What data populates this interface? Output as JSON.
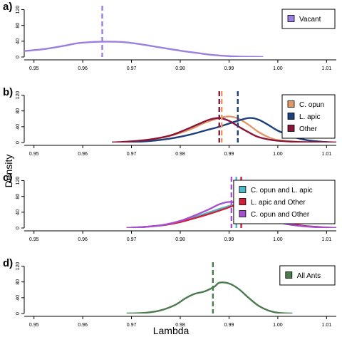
{
  "figure": {
    "xlabel": "Lambda",
    "ylabel": "Density"
  },
  "chart_data": [
    {
      "panel": "a)",
      "type": "line",
      "xlim": [
        0.948,
        1.012
      ],
      "ylim": [
        0,
        130
      ],
      "xticks": [
        0.95,
        0.96,
        0.97,
        0.98,
        0.99,
        1.0,
        1.01
      ],
      "xtick_labels": [
        "0.95",
        "0.96",
        "0.97",
        "0.98",
        "0.99",
        "1.00",
        "1.01"
      ],
      "yticks": [
        0,
        40,
        80,
        120
      ],
      "ytick_labels": [
        "0",
        "40",
        "80",
        "120"
      ],
      "legend_position": "top-right",
      "series": [
        {
          "name": "Vacant",
          "color": "#9b7fe0",
          "x": [
            0.948,
            0.952,
            0.956,
            0.959,
            0.962,
            0.965,
            0.968,
            0.971,
            0.974,
            0.977,
            0.98,
            0.983,
            0.986,
            0.989,
            0.992,
            0.995,
            0.997
          ],
          "y": [
            15,
            20,
            28,
            35,
            38,
            39,
            38,
            34,
            28,
            22,
            16,
            11,
            6,
            3,
            1,
            0.5,
            0
          ],
          "mean": 0.964
        }
      ]
    },
    {
      "panel": "b)",
      "type": "line",
      "xlim": [
        0.948,
        1.012
      ],
      "ylim": [
        0,
        130
      ],
      "xticks": [
        0.95,
        0.96,
        0.97,
        0.98,
        0.99,
        1.0,
        1.01
      ],
      "xtick_labels": [
        "0.95",
        "0.96",
        "0.97",
        "0.98",
        "0.99",
        "1.00",
        "1.01"
      ],
      "yticks": [
        0,
        40,
        80,
        120
      ],
      "ytick_labels": [
        "0",
        "40",
        "80",
        "120"
      ],
      "legend_position": "top-right",
      "series": [
        {
          "name": "C. opun",
          "color": "#e0996a",
          "x": [
            0.966,
            0.97,
            0.974,
            0.978,
            0.982,
            0.985,
            0.988,
            0.99,
            0.992,
            0.994,
            0.996,
            0.998,
            1.0,
            1.004,
            1.008,
            1.012
          ],
          "y": [
            0,
            2,
            7,
            17,
            33,
            50,
            62,
            66,
            60,
            45,
            27,
            14,
            6,
            2,
            0.5,
            0
          ],
          "mean": 0.9885
        },
        {
          "name": "L. apic",
          "color": "#1d3f7e",
          "x": [
            0.966,
            0.97,
            0.974,
            0.978,
            0.982,
            0.985,
            0.988,
            0.991,
            0.994,
            0.996,
            0.998,
            1.0,
            1.003,
            1.006,
            1.009,
            1.012
          ],
          "y": [
            0,
            1,
            4,
            10,
            20,
            30,
            40,
            52,
            62,
            58,
            45,
            30,
            15,
            6,
            2,
            0
          ],
          "mean": 0.9918
        },
        {
          "name": "Other",
          "color": "#8a1538",
          "x": [
            0.966,
            0.97,
            0.974,
            0.978,
            0.981,
            0.984,
            0.986,
            0.988,
            0.99,
            0.992,
            0.994,
            0.996,
            0.999,
            1.003,
            1.008,
            1.012
          ],
          "y": [
            0,
            3,
            8,
            18,
            32,
            48,
            58,
            62,
            55,
            40,
            26,
            14,
            6,
            2,
            0.5,
            0
          ],
          "mean": 0.988
        }
      ]
    },
    {
      "panel": "c)",
      "type": "line",
      "xlim": [
        0.948,
        1.012
      ],
      "ylim": [
        0,
        130
      ],
      "xticks": [
        0.95,
        0.96,
        0.97,
        0.98,
        0.99,
        1.0,
        1.01
      ],
      "xtick_labels": [
        "0.95",
        "0.96",
        "0.97",
        "0.98",
        "0.99",
        "1.00",
        "1.01"
      ],
      "yticks": [
        0,
        40,
        80,
        120
      ],
      "ytick_labels": [
        "0",
        "40",
        "80",
        "120"
      ],
      "legend_position": "top-right",
      "series": [
        {
          "name": "C. opun and L. apic",
          "color": "#4fb8c4",
          "x": [
            0.969,
            0.973,
            0.977,
            0.98,
            0.983,
            0.986,
            0.989,
            0.991,
            0.993,
            0.995,
            0.998,
            1.001,
            1.005,
            1.009,
            1.012
          ],
          "y": [
            0,
            3,
            8,
            16,
            28,
            40,
            52,
            58,
            55,
            44,
            28,
            15,
            6,
            2,
            0
          ],
          "mean": 0.9915
        },
        {
          "name": "L. apic and Other",
          "color": "#d0203a",
          "x": [
            0.969,
            0.973,
            0.977,
            0.98,
            0.983,
            0.986,
            0.989,
            0.991,
            0.993,
            0.995,
            0.998,
            1.001,
            1.005,
            1.009,
            1.012
          ],
          "y": [
            0,
            3,
            8,
            15,
            25,
            36,
            48,
            56,
            54,
            46,
            30,
            16,
            6,
            2,
            0
          ],
          "mean": 0.9925
        },
        {
          "name": "C. opun and Other",
          "color": "#a64fd0",
          "x": [
            0.969,
            0.973,
            0.977,
            0.98,
            0.983,
            0.986,
            0.988,
            0.99,
            0.992,
            0.994,
            0.997,
            1.0,
            1.004,
            1.008,
            1.012
          ],
          "y": [
            0,
            3,
            9,
            18,
            32,
            48,
            60,
            66,
            62,
            48,
            30,
            15,
            6,
            2,
            0
          ],
          "mean": 0.9905
        }
      ]
    },
    {
      "panel": "d)",
      "type": "line",
      "xlim": [
        0.948,
        1.012
      ],
      "ylim": [
        0,
        130
      ],
      "xticks": [
        0.95,
        0.96,
        0.97,
        0.98,
        0.99,
        1.0,
        1.01
      ],
      "xtick_labels": [
        "0.95",
        "0.96",
        "0.97",
        "0.98",
        "0.99",
        "1.00",
        "1.01"
      ],
      "yticks": [
        0,
        40,
        80,
        120
      ],
      "ytick_labels": [
        "0",
        "40",
        "80",
        "120"
      ],
      "legend_position": "top-right",
      "series": [
        {
          "name": "All Ants",
          "color": "#4a7c4e",
          "x": [
            0.969,
            0.973,
            0.976,
            0.979,
            0.981,
            0.983,
            0.985,
            0.987,
            0.988,
            0.99,
            0.992,
            0.994,
            0.996,
            0.998,
            1.0,
            1.003
          ],
          "y": [
            0,
            2,
            8,
            22,
            38,
            50,
            56,
            68,
            78,
            76,
            62,
            40,
            20,
            8,
            2,
            0
          ],
          "mean": 0.9867
        }
      ]
    }
  ]
}
